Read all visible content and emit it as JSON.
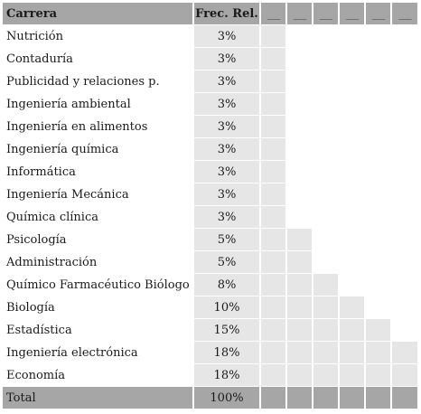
{
  "chart_data": {
    "type": "table",
    "columns": [
      "Carrera",
      "Frec. Rel.",
      "___",
      "___",
      "___",
      "___",
      "___",
      "___"
    ],
    "rows": [
      {
        "carrera": "Nutrición",
        "freq_label": "3%",
        "value": 3
      },
      {
        "carrera": "Contaduría",
        "freq_label": "3%",
        "value": 3
      },
      {
        "carrera": "Publicidad y relaciones p.",
        "freq_label": "3%",
        "value": 3
      },
      {
        "carrera": "Ingeniería ambiental",
        "freq_label": "3%",
        "value": 3
      },
      {
        "carrera": "Ingeniería en alimentos",
        "freq_label": "3%",
        "value": 3
      },
      {
        "carrera": "Ingeniería química",
        "freq_label": "3%",
        "value": 3
      },
      {
        "carrera": "Informática",
        "freq_label": "3%",
        "value": 3
      },
      {
        "carrera": "Ingeniería Mecánica",
        "freq_label": "3%",
        "value": 3
      },
      {
        "carrera": "Química clínica",
        "freq_label": "3%",
        "value": 3
      },
      {
        "carrera": "Psicología",
        "freq_label": "5%",
        "value": 5
      },
      {
        "carrera": "Administración",
        "freq_label": "5%",
        "value": 5
      },
      {
        "carrera": "Químico Farmacéutico Biólogo",
        "freq_label": "8%",
        "value": 8
      },
      {
        "carrera": "Biología",
        "freq_label": "10%",
        "value": 10
      },
      {
        "carrera": "Estadística",
        "freq_label": "15%",
        "value": 15
      },
      {
        "carrera": "Ingeniería electrónica",
        "freq_label": "18%",
        "value": 18
      },
      {
        "carrera": "Economía",
        "freq_label": "18%",
        "value": 18
      }
    ],
    "bar_blocks": [
      1,
      1,
      1,
      1,
      1,
      1,
      1,
      1,
      1,
      2,
      2,
      3,
      4,
      5,
      6,
      6
    ],
    "total": {
      "label": "Total",
      "freq_label": "100%"
    }
  },
  "colors": {
    "header": "#a6a6a6",
    "cell": "#e6e6e6",
    "background": "#ffffff"
  }
}
